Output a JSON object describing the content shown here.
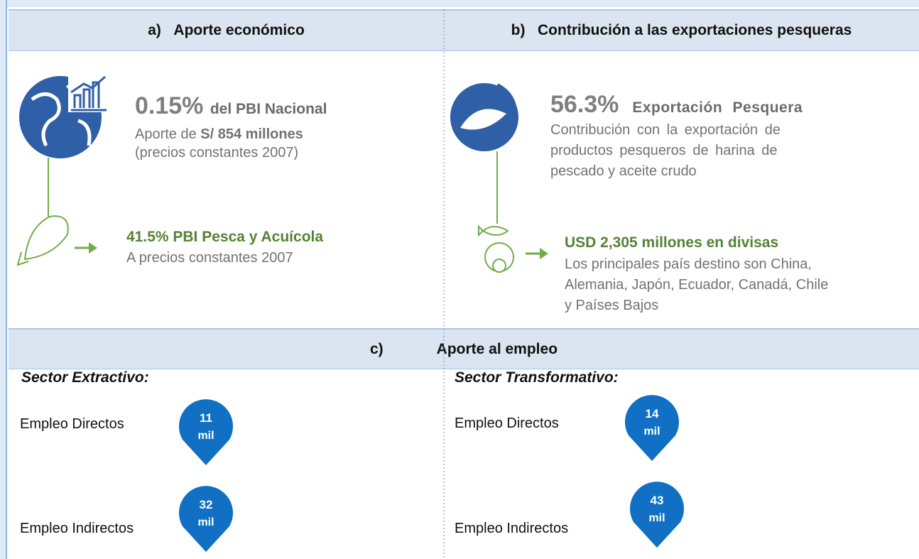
{
  "sections": [
    {
      "letter": "a)",
      "title": "Aporte económico",
      "main": {
        "figure": "0.15%",
        "label": "del PBI Nacional",
        "line1_prefix": "Aporte de",
        "line1_bold": "S/ 854 millones",
        "line2": "(precios constantes 2007)"
      },
      "sub": {
        "headline": "41.5% PBI Pesca y Acuícola",
        "lines": [
          "A precios constantes 2007"
        ]
      }
    },
    {
      "letter": "b)",
      "title": "Contribución a las exportaciones pesqueras",
      "main": {
        "figure": "56.3%",
        "label": "Exportación Pesquera",
        "lines": [
          "Contribución con la exportación de",
          "productos pesqueros de harina de",
          "pescado y aceite crudo"
        ]
      },
      "sub": {
        "headline": "USD 2,305 millones en divisas",
        "lines": [
          "Los principales país destino son China,",
          "Alemania, Japón, Ecuador, Canadá, Chile",
          "y Países Bajos"
        ]
      }
    },
    {
      "letter": "c)",
      "title": "Aporte al empleo",
      "sectors": [
        {
          "name": "Sector Extractivo:",
          "items": [
            {
              "label": "Empleo Directos",
              "value": 11,
              "unit": "mil"
            },
            {
              "label": "Empleo Indirectos",
              "value": 32,
              "unit": "mil"
            }
          ]
        },
        {
          "name": "Sector Transformativo:",
          "items": [
            {
              "label": "Empleo Directos",
              "value": 14,
              "unit": "mil"
            },
            {
              "label": "Empleo Indirectos",
              "value": 43,
              "unit": "mil"
            }
          ]
        }
      ]
    }
  ]
}
